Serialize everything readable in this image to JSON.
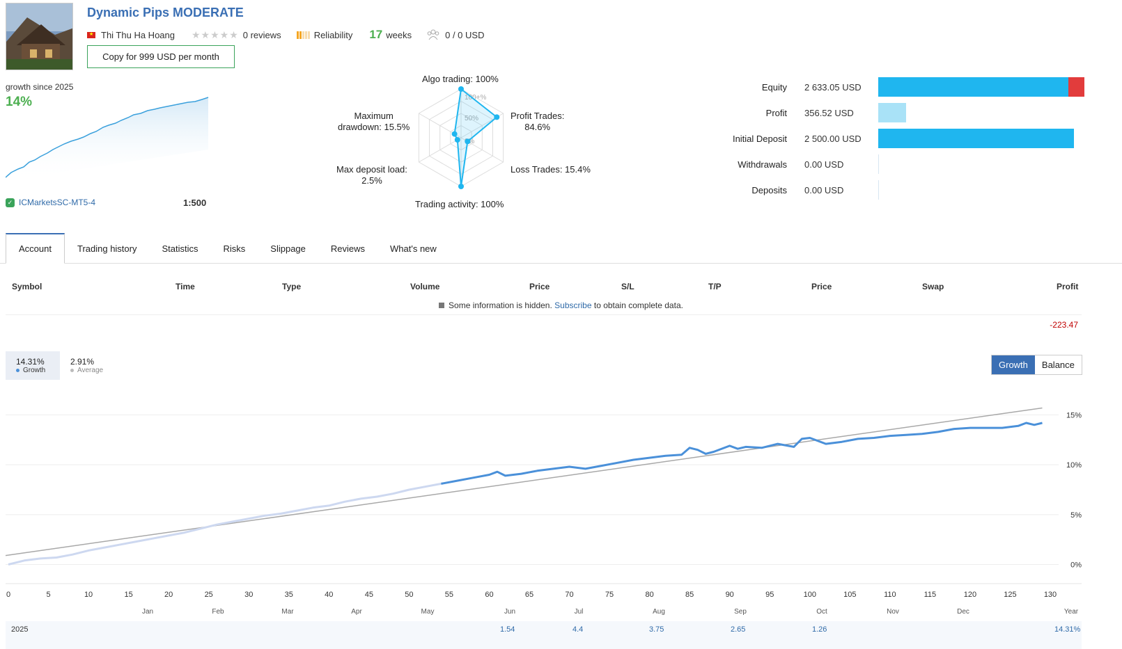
{
  "signal": {
    "title": "Dynamic Pips MODERATE",
    "author": "Thi Thu Ha Hoang",
    "reviews": "0 reviews",
    "reliability_label": "Reliability",
    "weeks_num": "17",
    "weeks_label": "weeks",
    "subscribers": "0 / 0 USD",
    "copy_button": "Copy for 999 USD per month"
  },
  "growth": {
    "label": "growth since 2025",
    "value": "14%",
    "broker": "ICMarketsSC-MT5-4",
    "leverage": "1:500"
  },
  "radar": {
    "algo": "Algo trading: 100%",
    "profit": [
      "Profit Trades:",
      "84.6%"
    ],
    "loss": "Loss Trades: 15.4%",
    "activity": "Trading activity: 100%",
    "deposit_load": [
      "Max deposit load:",
      "2.5%"
    ],
    "drawdown": [
      "Maximum",
      "drawdown: 15.5%"
    ],
    "ticks": [
      "100+%",
      "50%",
      "0%"
    ],
    "values": {
      "algo": 100,
      "profit": 84.6,
      "loss": 15.4,
      "activity": 100,
      "deposit_load": 2.5,
      "drawdown": 15.5
    }
  },
  "money": [
    {
      "label": "Equity",
      "value": "2 633.05 USD",
      "amount": 2633.05
    },
    {
      "label": "Profit",
      "value": "356.52 USD",
      "amount": 356.52
    },
    {
      "label": "Initial Deposit",
      "value": "2 500.00 USD",
      "amount": 2500.0
    },
    {
      "label": "Withdrawals",
      "value": "0.00 USD",
      "amount": 0
    },
    {
      "label": "Deposits",
      "value": "0.00 USD",
      "amount": 0
    }
  ],
  "tabs": [
    "Account",
    "Trading history",
    "Statistics",
    "Risks",
    "Slippage",
    "Reviews",
    "What's new"
  ],
  "table": {
    "headers": [
      "Symbol",
      "Time",
      "Type",
      "Volume",
      "Price",
      "S/L",
      "T/P",
      "Price",
      "Swap",
      "Profit"
    ],
    "hidden_prefix": "Some information is hidden.",
    "hidden_link": "Subscribe",
    "hidden_suffix": "to obtain complete data.",
    "total": "-223.47"
  },
  "chart_header": {
    "growth_value": "14.31%",
    "growth_label": "Growth",
    "average_value": "2.91%",
    "average_label": "Average",
    "btn_growth": "Growth",
    "btn_balance": "Balance"
  },
  "colors": {
    "accent": "#3a6fb4",
    "positive": "#4caf50",
    "equity_bar": "#1fb6ef",
    "profit_bar": "#a9e2f7",
    "loss_bar": "#e23c3c",
    "series_line": "#4a90d9",
    "series_light": "#cdd8f0",
    "trend_line": "#a8a8a8"
  },
  "chart_data": {
    "type": "line",
    "x_ticks": [
      "0",
      "5",
      "10",
      "15",
      "20",
      "25",
      "30",
      "35",
      "40",
      "45",
      "50",
      "55",
      "60",
      "65",
      "70",
      "75",
      "80",
      "85",
      "90",
      "95",
      "100",
      "105",
      "110",
      "115",
      "120",
      "125",
      "130"
    ],
    "months": [
      "Jan",
      "Feb",
      "Mar",
      "Apr",
      "May",
      "Jun",
      "Jul",
      "Aug",
      "Sep",
      "Oct",
      "Nov",
      "Dec",
      "Year"
    ],
    "y_ticks": [
      "15%",
      "10%",
      "5%",
      "0%"
    ],
    "ylim": [
      -1.5,
      16.5
    ],
    "xlim": [
      0,
      130
    ],
    "series": [
      {
        "name": "Growth",
        "x": [
          0,
          2,
          4,
          6,
          8,
          10,
          12,
          14,
          16,
          18,
          20,
          22,
          24,
          26,
          28,
          30,
          32,
          34,
          36,
          38,
          40,
          42,
          44,
          46,
          48,
          50,
          52,
          54,
          56,
          58,
          60,
          61,
          62,
          64,
          66,
          68,
          70,
          72,
          74,
          76,
          78,
          80,
          82,
          84,
          85,
          86,
          87,
          88,
          90,
          91,
          92,
          94,
          96,
          98,
          99,
          100,
          102,
          104,
          106,
          108,
          110,
          112,
          114,
          116,
          118,
          120,
          122,
          124,
          126,
          127,
          128,
          129
        ],
        "y": [
          0.0,
          0.4,
          0.6,
          0.7,
          1.0,
          1.4,
          1.7,
          2.0,
          2.3,
          2.6,
          2.9,
          3.2,
          3.6,
          4.0,
          4.3,
          4.6,
          4.9,
          5.1,
          5.4,
          5.7,
          5.9,
          6.3,
          6.6,
          6.8,
          7.1,
          7.5,
          7.8,
          8.1,
          8.4,
          8.7,
          9.0,
          9.3,
          8.9,
          9.1,
          9.4,
          9.6,
          9.8,
          9.6,
          9.9,
          10.2,
          10.5,
          10.7,
          10.9,
          11.0,
          11.7,
          11.5,
          11.1,
          11.3,
          11.9,
          11.6,
          11.8,
          11.7,
          12.1,
          11.8,
          12.6,
          12.7,
          12.1,
          12.3,
          12.6,
          12.7,
          12.9,
          13.0,
          13.1,
          13.3,
          13.6,
          13.7,
          13.7,
          13.7,
          13.9,
          14.2,
          14.0,
          14.2
        ]
      },
      {
        "name": "Average",
        "x": [
          0,
          129
        ],
        "y": [
          0.9,
          15.7
        ]
      }
    ]
  },
  "bottom": {
    "year": "2025",
    "values": [
      "1.54",
      "4.4",
      "3.75",
      "2.65",
      "1.26",
      "14.31%"
    ]
  }
}
